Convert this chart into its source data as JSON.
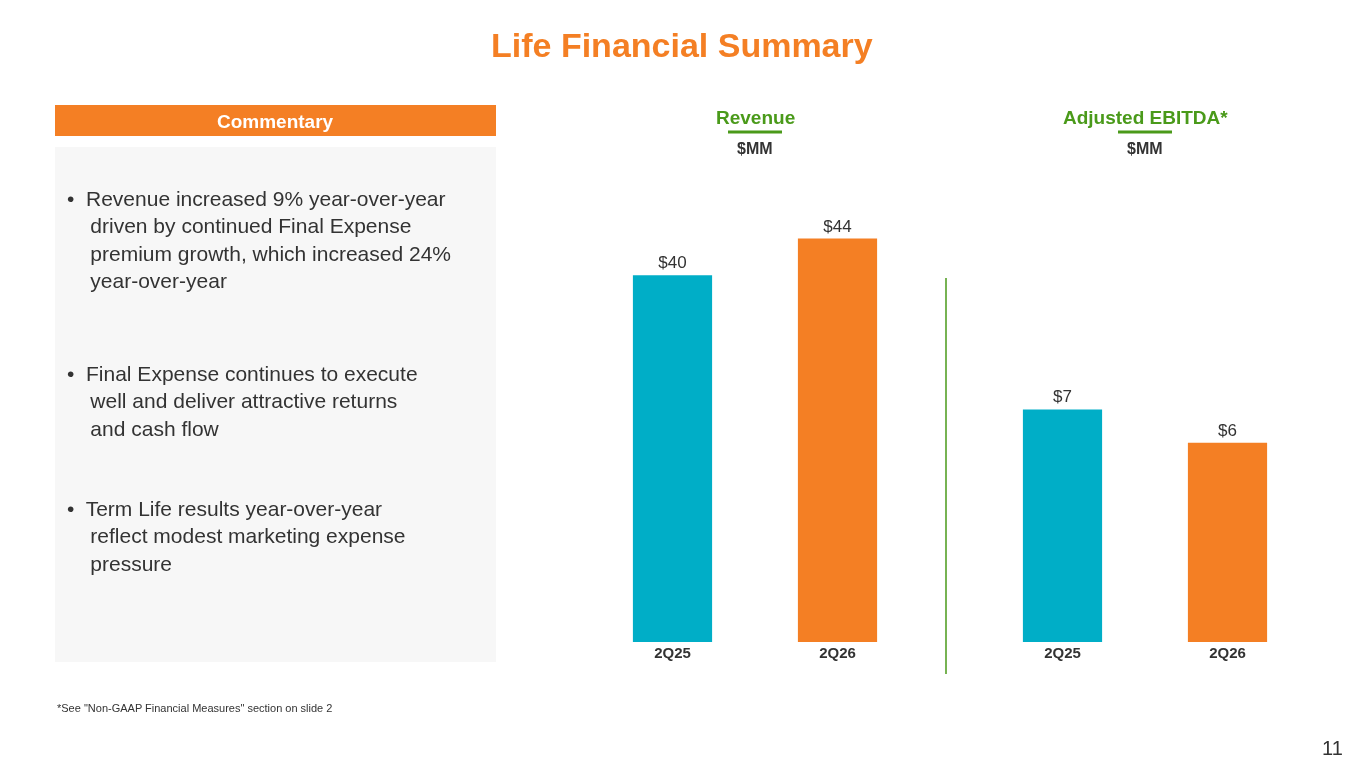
{
  "chart_data": [
    {
      "type": "other",
      "title": "Life Financial Summary",
      "annotations": [
        "Commentary",
        "• Revenue increased 9% year-over-year driven by continued Final Expense premium growth, which increased 24% year-over-year",
        "• Final Expense continues to execute well and deliver attractive returns and cash flow",
        "• Term Life results year-over-year reflect modest marketing expense pressure",
        "*See \"Non-GAAP Financial Measures\" section on slide 2",
        "11"
      ]
    },
    {
      "type": "bar",
      "title": "Revenue",
      "subtitle": "$MM",
      "categories": [
        "2Q25",
        "2Q26"
      ],
      "values": [
        40,
        44
      ],
      "colors": [
        "#00aec7",
        "#f47f24"
      ],
      "value_labels": [
        "$40",
        "$44"
      ]
    },
    {
      "type": "bar",
      "title": "Adjusted EBITDA*",
      "subtitle": "$MM",
      "categories": [
        "2Q25",
        "2Q26"
      ],
      "values": [
        7,
        6
      ],
      "colors": [
        "#00aec7",
        "#f47f24"
      ],
      "value_labels": [
        "$7",
        "$6"
      ]
    }
  ]
}
